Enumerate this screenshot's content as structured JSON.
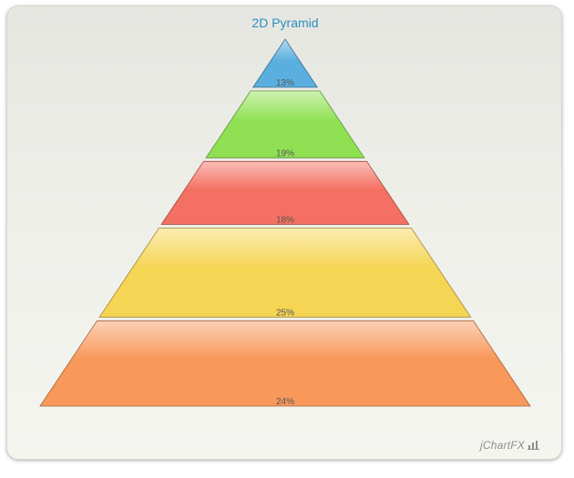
{
  "chart_data": {
    "type": "pyramid",
    "title": "2D Pyramid",
    "values": [
      13,
      19,
      18,
      25,
      24
    ],
    "labels": [
      "13%",
      "19%",
      "18%",
      "25%",
      "24%"
    ],
    "colors": [
      "#5aafdf",
      "#8fe052",
      "#f47062",
      "#f5d553",
      "#f8985a"
    ],
    "legend": "none"
  },
  "brand": {
    "text": "jChartFX",
    "icon": "bar-chart-icon"
  }
}
